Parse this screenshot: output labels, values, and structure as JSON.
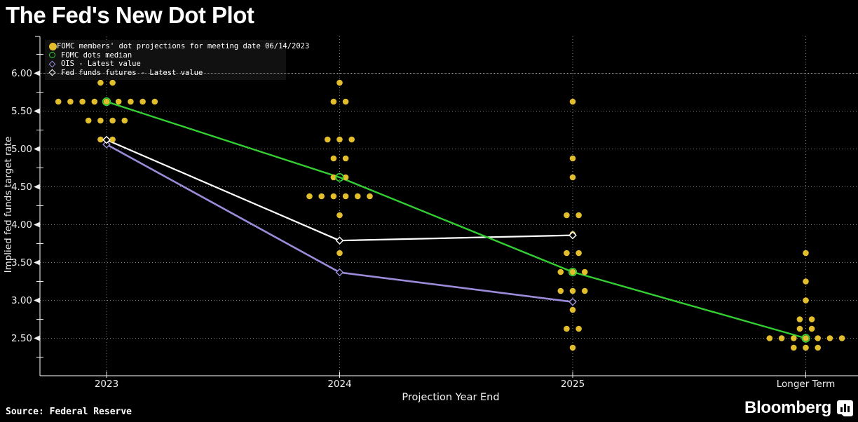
{
  "title": "The Fed's New Dot Plot",
  "source": "Source: Federal Reserve",
  "brand": {
    "name": "Bloomberg"
  },
  "legend": {
    "position": "top-left",
    "items": [
      {
        "label": "FOMC members' dot projections for meeting date 06/14/2023",
        "marker": "filled-circle",
        "color": "#E2BE2C"
      },
      {
        "label": "FOMC dots median",
        "marker": "open-circle",
        "color": "#33CF33"
      },
      {
        "label": "OIS - Latest value",
        "marker": "open-diamond",
        "color": "#9C8BD9"
      },
      {
        "label": "Fed funds futures - Latest value",
        "marker": "open-diamond",
        "color": "#FFFFFF"
      }
    ]
  },
  "chart_data": {
    "type": "scatter",
    "title": "The Fed's New Dot Plot",
    "xlabel": "Projection Year End",
    "ylabel": "Implied fed funds target rate",
    "categories": [
      "2023",
      "2024",
      "2025",
      "Longer Term"
    ],
    "ylim": [
      2.0,
      6.5
    ],
    "y_ticks": [
      2.5,
      3.0,
      3.5,
      4.0,
      4.5,
      5.0,
      5.5,
      6.0
    ],
    "y_minor_ticks": [
      2.25,
      2.75,
      3.25,
      3.75,
      4.25,
      4.75,
      5.25,
      5.75,
      6.25
    ],
    "y_tick_format": "0.00",
    "grid": "dotted",
    "legend_position": "top-left",
    "colors": {
      "dots": "#E2BE2C",
      "median": "#33CF33",
      "ois": "#9C8BD9",
      "futures": "#FFFFFF",
      "axis": "#FFFFFF",
      "tick_text": "#ECECEC",
      "grid": "rgba(255,255,255,0.5)"
    },
    "series": [
      {
        "name": "FOMC members' dot projections for meeting date 06/14/2023",
        "role": "dots",
        "columns": [
          {
            "category": "2023",
            "rows": [
              {
                "rate": 5.875,
                "count": 2
              },
              {
                "rate": 5.625,
                "count": 9
              },
              {
                "rate": 5.375,
                "count": 4
              },
              {
                "rate": 5.125,
                "count": 2
              }
            ]
          },
          {
            "category": "2024",
            "rows": [
              {
                "rate": 5.875,
                "count": 1
              },
              {
                "rate": 5.625,
                "count": 2
              },
              {
                "rate": 5.125,
                "count": 3
              },
              {
                "rate": 4.875,
                "count": 2
              },
              {
                "rate": 4.625,
                "count": 2
              },
              {
                "rate": 4.375,
                "count": 6
              },
              {
                "rate": 4.125,
                "count": 1
              },
              {
                "rate": 3.625,
                "count": 1
              }
            ]
          },
          {
            "category": "2025",
            "rows": [
              {
                "rate": 5.625,
                "count": 1
              },
              {
                "rate": 4.875,
                "count": 1
              },
              {
                "rate": 4.625,
                "count": 1
              },
              {
                "rate": 4.125,
                "count": 2
              },
              {
                "rate": 3.875,
                "count": 1
              },
              {
                "rate": 3.625,
                "count": 2
              },
              {
                "rate": 3.375,
                "count": 3
              },
              {
                "rate": 3.125,
                "count": 3
              },
              {
                "rate": 2.875,
                "count": 1
              },
              {
                "rate": 2.625,
                "count": 2
              },
              {
                "rate": 2.375,
                "count": 1
              }
            ]
          },
          {
            "category": "Longer Term",
            "rows": [
              {
                "rate": 3.625,
                "count": 1
              },
              {
                "rate": 3.25,
                "count": 1
              },
              {
                "rate": 3.0,
                "count": 1
              },
              {
                "rate": 2.75,
                "count": 2
              },
              {
                "rate": 2.625,
                "count": 2
              },
              {
                "rate": 2.5,
                "count": 7
              },
              {
                "rate": 2.375,
                "count": 3
              }
            ]
          }
        ]
      },
      {
        "name": "FOMC dots median",
        "role": "median",
        "categories": [
          "2023",
          "2024",
          "2025",
          "Longer Term"
        ],
        "values": [
          5.625,
          4.625,
          3.375,
          2.5
        ]
      },
      {
        "name": "OIS - Latest value",
        "role": "ois",
        "categories": [
          "2023",
          "2024",
          "2025"
        ],
        "values": [
          5.06,
          3.37,
          2.98
        ]
      },
      {
        "name": "Fed funds futures - Latest value",
        "role": "futures",
        "categories": [
          "2023",
          "2024",
          "2025"
        ],
        "values": [
          5.12,
          3.79,
          3.86
        ]
      }
    ]
  }
}
